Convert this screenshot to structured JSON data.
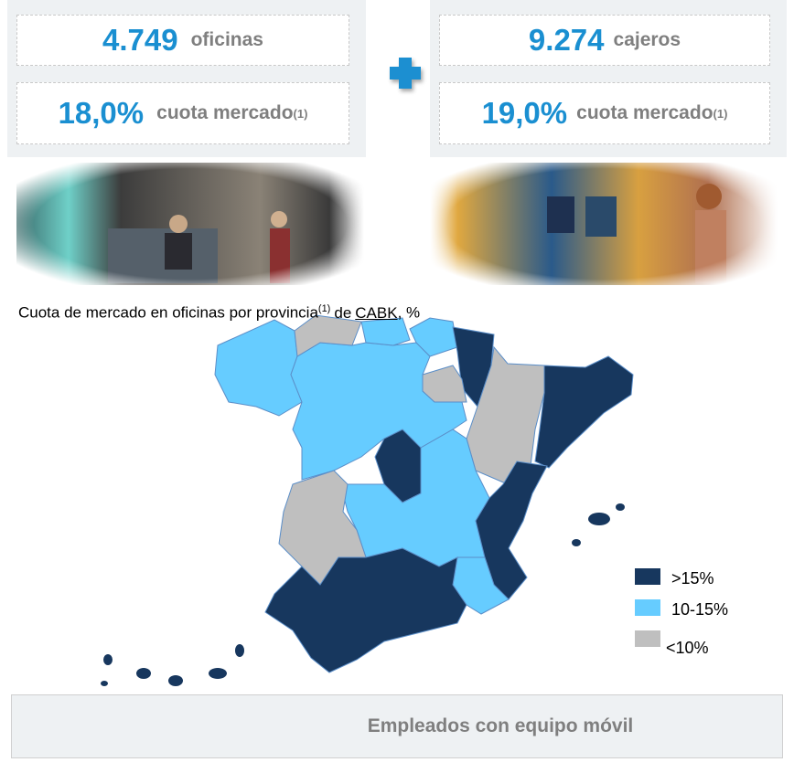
{
  "offices": {
    "count": "4.749",
    "unit": "oficinas",
    "share": "18,0%",
    "share_label": "cuota mercado",
    "note": "(1)"
  },
  "atms": {
    "count": "9.274",
    "unit": "cajeros",
    "share": "19,0%",
    "share_label": "cuota mercado",
    "note": "(1)"
  },
  "map": {
    "caption": {
      "text": "Cuota de mercado en oficinas por provincia",
      "note": "(1)",
      "connector": "de",
      "link": "CABK",
      "tail": ", %"
    },
    "legend": [
      {
        "label": ">15%",
        "color": "#17375e"
      },
      {
        "label": "10-15%",
        "color": "#66ccff"
      },
      {
        "label": "<10%",
        "color": "#bfbfbf"
      }
    ]
  },
  "footer": {
    "text": "Empleados con equipo móvil"
  }
}
